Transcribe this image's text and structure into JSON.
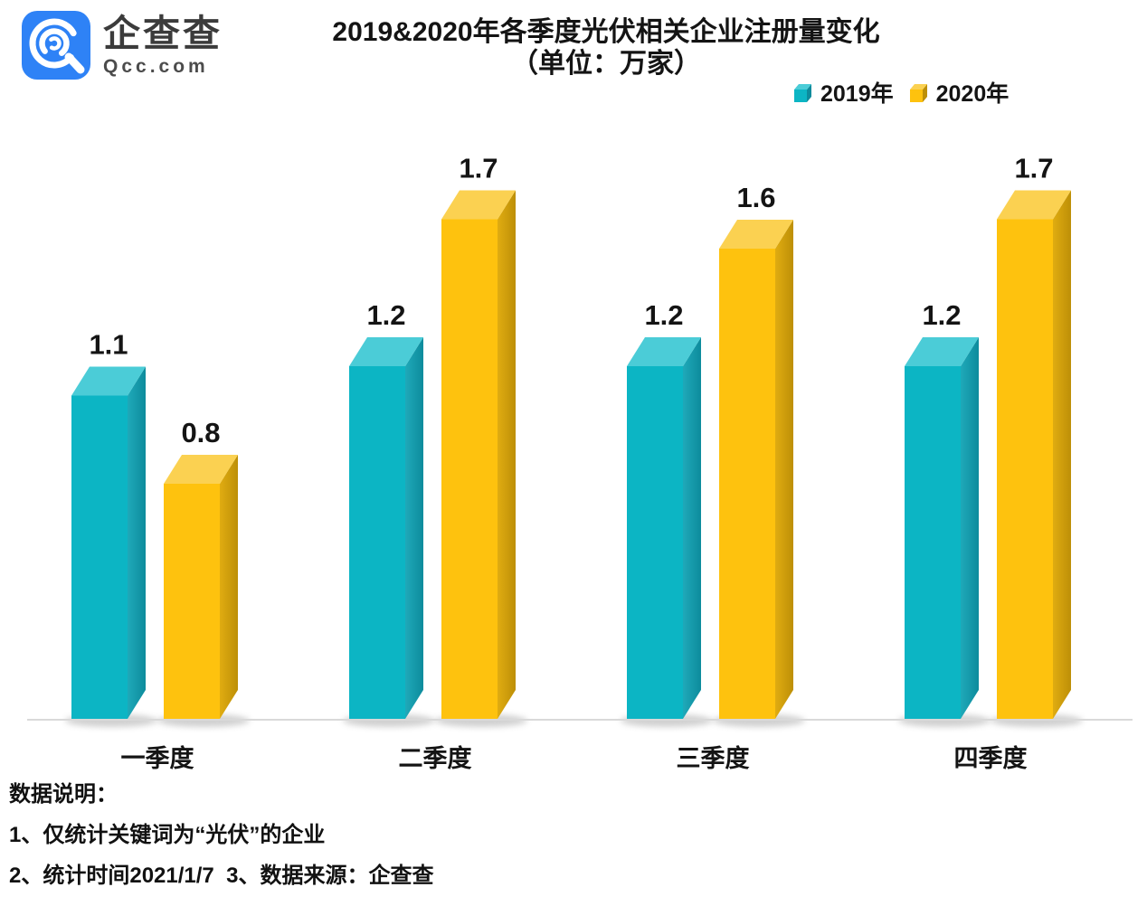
{
  "logo": {
    "brand": "企查查",
    "domain": "Qcc.com",
    "brand_color": "#2E82F6"
  },
  "title": {
    "line1": "2019&2020年各季度光伏相关企业注册量变化",
    "line2": "（单位：万家）"
  },
  "legend": {
    "items": [
      {
        "label": "2019年"
      },
      {
        "label": "2020年"
      }
    ]
  },
  "footer": {
    "heading": "数据说明：",
    "note1": "1、仅统计关键词为“光伏”的企业",
    "note2": "2、统计时间2021/1/7  3、数据来源：企查查"
  },
  "chart_data": {
    "type": "bar",
    "style": "3d-clustered-column",
    "title": "2019&2020年各季度光伏相关企业注册量变化",
    "subtitle": "（单位：万家）",
    "unit": "万家",
    "categories": [
      "一季度",
      "二季度",
      "三季度",
      "四季度"
    ],
    "series": [
      {
        "name": "2019年",
        "values": [
          1.1,
          1.2,
          1.2,
          1.2
        ],
        "colors": {
          "front": "#0CB5C4",
          "top": "#4BCCD7",
          "side_from": "#1FA9B9",
          "side_to": "#0D8B9C"
        }
      },
      {
        "name": "2020年",
        "values": [
          0.8,
          1.7,
          1.6,
          1.7
        ],
        "colors": {
          "front": "#FEC20E",
          "top": "#FBD151",
          "side_from": "#E0AC11",
          "side_to": "#BD8F07"
        }
      }
    ],
    "value_labels": true,
    "gridlines": false,
    "y_axis_visible": false,
    "legend_position": "top-right",
    "ylim": [
      0,
      2
    ],
    "baseline_color": "#D9D9D9",
    "text_color": "#141414"
  }
}
